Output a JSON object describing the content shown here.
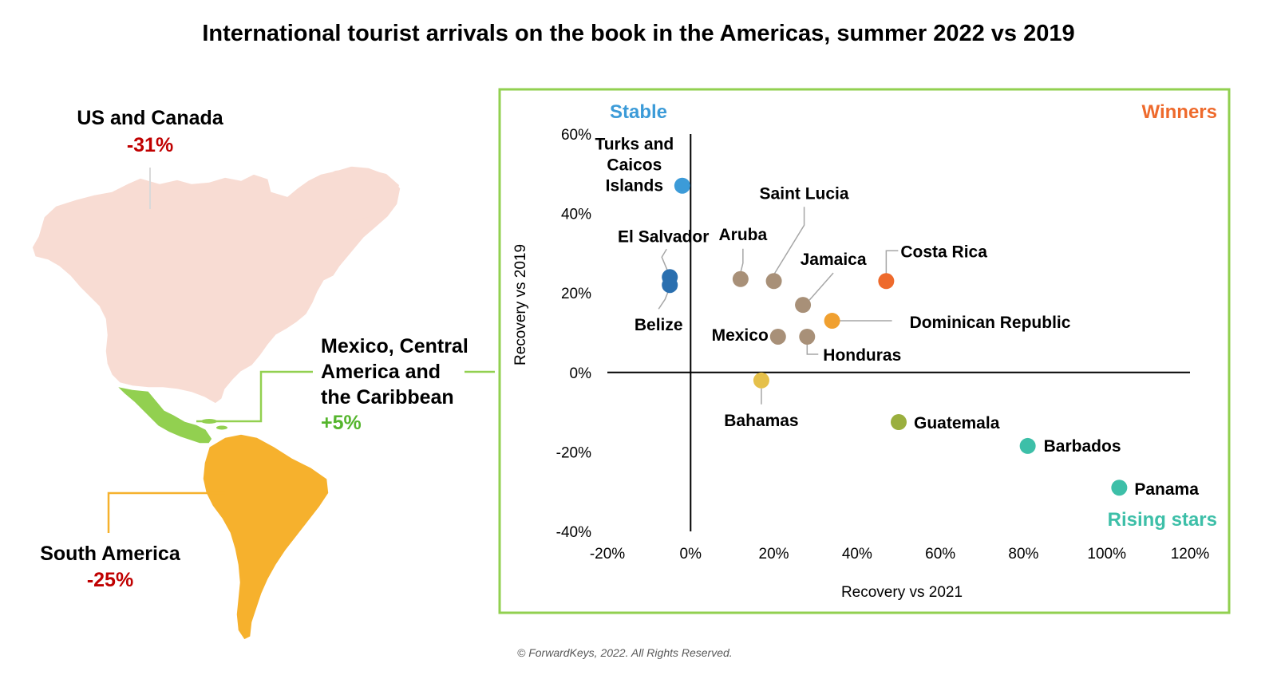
{
  "title": "International tourist arrivals on the book in the Americas, summer 2022 vs 2019",
  "copyright": "© ForwardKeys, 2022. All Rights Reserved.",
  "colors": {
    "frame": "#92D050",
    "us_canada_fill": "#F8DCD3",
    "mexico_fill": "#92D050",
    "south_america_fill": "#F6B12D",
    "negative": "#C00000",
    "positive": "#55B52D",
    "stable": "#3C9BD8",
    "winners": "#EE6A2C",
    "rising": "#3DBFA8"
  },
  "regions": {
    "us_canada": {
      "name": "US and Canada",
      "change": "-31%"
    },
    "mexico": {
      "name_lines": [
        "Mexico, Central",
        "America and",
        "the Caribbean"
      ],
      "change": "+5%"
    },
    "south_america": {
      "name": "South America",
      "change": "-25%"
    }
  },
  "quadrants": {
    "stable": "Stable",
    "winners": "Winners",
    "rising": "Rising stars"
  },
  "chart_data": {
    "type": "scatter",
    "xlabel": "Recovery vs 2021",
    "ylabel": "Recovery vs 2019",
    "xlim": [
      -20,
      120
    ],
    "ylim": [
      -40,
      60
    ],
    "x_ticks": [
      "-20%",
      "0%",
      "20%",
      "40%",
      "60%",
      "80%",
      "100%",
      "120%"
    ],
    "y_ticks": [
      "60%",
      "40%",
      "20%",
      "0%",
      "-20%",
      "-40%"
    ],
    "points": [
      {
        "label": "Turks and Caicos Islands",
        "x": -2,
        "y": 47,
        "color": "#3C9BD8"
      },
      {
        "label": "El Salvador",
        "x": -5,
        "y": 24,
        "color": "#2A6FAF"
      },
      {
        "label": "Belize",
        "x": -5,
        "y": 22,
        "color": "#2A6FAF"
      },
      {
        "label": "Aruba",
        "x": 12,
        "y": 23.5,
        "color": "#A89078"
      },
      {
        "label": "Saint Lucia",
        "x": 20,
        "y": 23,
        "color": "#A89078"
      },
      {
        "label": "Jamaica",
        "x": 27,
        "y": 17,
        "color": "#A89078"
      },
      {
        "label": "Costa Rica",
        "x": 47,
        "y": 23,
        "color": "#EE6A2C"
      },
      {
        "label": "Dominican Republic",
        "x": 34,
        "y": 13,
        "color": "#F0A030"
      },
      {
        "label": "Mexico",
        "x": 21,
        "y": 9,
        "color": "#A89078"
      },
      {
        "label": "Honduras",
        "x": 28,
        "y": 9,
        "color": "#A89078"
      },
      {
        "label": "Bahamas",
        "x": 17,
        "y": -2,
        "color": "#E5C04A"
      },
      {
        "label": "Guatemala",
        "x": 50,
        "y": -12.5,
        "color": "#9AAF3E"
      },
      {
        "label": "Barbados",
        "x": 81,
        "y": -18.5,
        "color": "#3DBFA8"
      },
      {
        "label": "Panama",
        "x": 103,
        "y": -29,
        "color": "#3DBFA8"
      }
    ]
  }
}
